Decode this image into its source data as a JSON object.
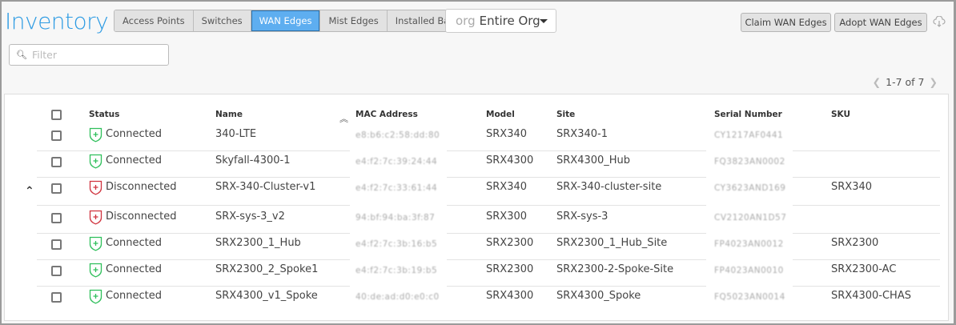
{
  "header": {
    "title": "Inventory",
    "tabs": [
      {
        "label": "Access Points",
        "active": false
      },
      {
        "label": "Switches",
        "active": false
      },
      {
        "label": "WAN Edges",
        "active": true
      },
      {
        "label": "Mist Edges",
        "active": false
      },
      {
        "label": "Installed Base",
        "active": false
      }
    ],
    "org_prefix": "org",
    "org_value": "Entire Org",
    "claim_label": "Claim WAN Edges",
    "adopt_label": "Adopt WAN Edges"
  },
  "filter": {
    "placeholder": "Filter"
  },
  "pager": {
    "text": "1-7 of 7"
  },
  "colors": {
    "accent": "#2d9be3",
    "connected": "#2fbf5b",
    "disconnected": "#d0343f"
  },
  "table": {
    "columns": [
      "Status",
      "Name",
      "MAC Address",
      "Model",
      "Site",
      "Serial Number",
      "SKU"
    ],
    "rows": [
      {
        "status": "Connected",
        "name": "340-LTE",
        "mac": "e8:b6:c2:58:dd:80",
        "model": "SRX340",
        "site": "SRX340-1",
        "serial": "CY1217AF0441",
        "sku": ""
      },
      {
        "status": "Connected",
        "name": "Skyfall-4300-1",
        "mac": "e4:f2:7c:39:24:44",
        "model": "SRX4300",
        "site": "SRX4300_Hub",
        "serial": "FQ3823AN0002",
        "sku": ""
      },
      {
        "status": "Disconnected",
        "name": "SRX-340-Cluster-v1",
        "mac": "e4:f2:7c:33:61:44",
        "model": "SRX340",
        "site": "SRX-340-cluster-site",
        "serial": "CY3623AND169",
        "sku": "SRX340",
        "expanded": true
      },
      {
        "status": "Disconnected",
        "name": "SRX-sys-3_v2",
        "mac": "94:bf:94:ba:3f:87",
        "model": "SRX300",
        "site": "SRX-sys-3",
        "serial": "CV2120AN1D57",
        "sku": ""
      },
      {
        "status": "Connected",
        "name": "SRX2300_1_Hub",
        "mac": "e4:f2:7c:3b:16:b5",
        "model": "SRX2300",
        "site": "SRX2300_1_Hub_Site",
        "serial": "FP4023AN0012",
        "sku": "SRX2300"
      },
      {
        "status": "Connected",
        "name": "SRX2300_2_Spoke1",
        "mac": "e4:f2:7c:3b:19:b5",
        "model": "SRX2300",
        "site": "SRX2300-2-Spoke-Site",
        "serial": "FP4023AN0010",
        "sku": "SRX2300-AC"
      },
      {
        "status": "Connected",
        "name": "SRX4300_v1_Spoke",
        "mac": "40:de:ad:d0:e0:c0",
        "model": "SRX4300",
        "site": "SRX4300_Spoke",
        "serial": "FQ5023AN0014",
        "sku": "SRX4300-CHAS"
      }
    ]
  }
}
